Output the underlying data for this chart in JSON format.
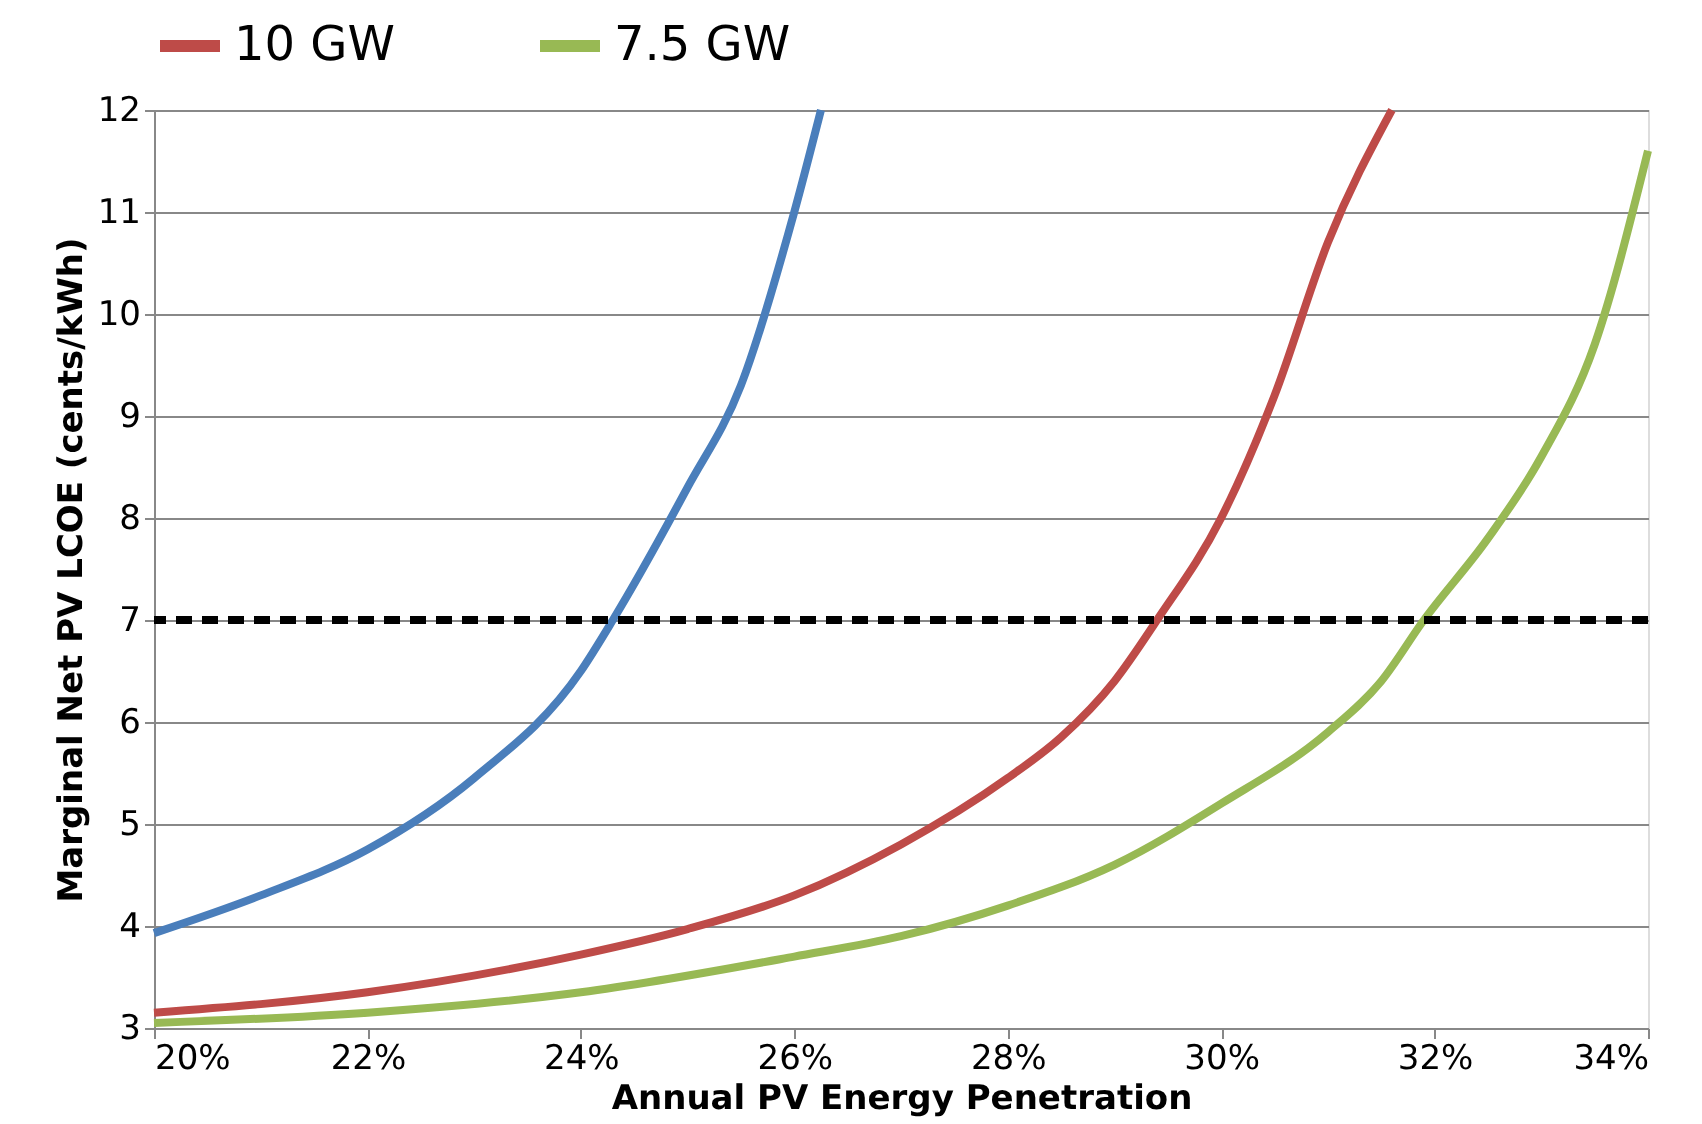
{
  "chart_data": {
    "type": "line",
    "xlabel": "Annual PV Energy Penetration",
    "ylabel": "Marginal Net PV LCOE (cents/kWh)",
    "xlim": [
      20,
      34
    ],
    "ylim": [
      3,
      12
    ],
    "xticks": [
      {
        "value": 20,
        "label": "20%"
      },
      {
        "value": 22,
        "label": "22%"
      },
      {
        "value": 24,
        "label": "24%"
      },
      {
        "value": 26,
        "label": "26%"
      },
      {
        "value": 28,
        "label": "28%"
      },
      {
        "value": 30,
        "label": "30%"
      },
      {
        "value": 32,
        "label": "32%"
      },
      {
        "value": 34,
        "label": "34%"
      }
    ],
    "yticks": [
      3,
      4,
      5,
      6,
      7,
      8,
      9,
      10,
      11,
      12
    ],
    "grid": "y",
    "legend": "top",
    "line_style": "solid",
    "marker": "none",
    "series": [
      {
        "color": "#4a7ebb",
        "x": [
          20,
          21,
          22,
          23,
          24,
          24.3,
          25,
          25.5,
          26,
          26.25
        ],
        "values": [
          3.93,
          4.3,
          4.75,
          5.45,
          6.5,
          7.0,
          8.3,
          9.3,
          11.0,
          12.0
        ]
      },
      {
        "name": "10 GW",
        "color": "#be4b48",
        "x": [
          20,
          22,
          24,
          25,
          26,
          27,
          28,
          28.5,
          29,
          29.4,
          30,
          30.5,
          31,
          31.6
        ],
        "values": [
          3.15,
          3.35,
          3.72,
          3.97,
          4.3,
          4.8,
          5.45,
          5.85,
          6.4,
          7.0,
          8.0,
          9.2,
          10.7,
          12.0
        ]
      },
      {
        "name": "7.5 GW",
        "color": "#98b954",
        "x": [
          20,
          22,
          24,
          26,
          27,
          28,
          29,
          30,
          31,
          31.5,
          31.9,
          32.5,
          33,
          33.5,
          34
        ],
        "values": [
          3.05,
          3.15,
          3.35,
          3.7,
          3.9,
          4.2,
          4.6,
          5.2,
          5.9,
          6.4,
          7.0,
          7.8,
          8.6,
          9.7,
          11.6
        ]
      }
    ],
    "ref_lines": [
      {
        "axis": "y",
        "value": 7,
        "color": "#000000",
        "line_style": "dashed"
      }
    ]
  }
}
